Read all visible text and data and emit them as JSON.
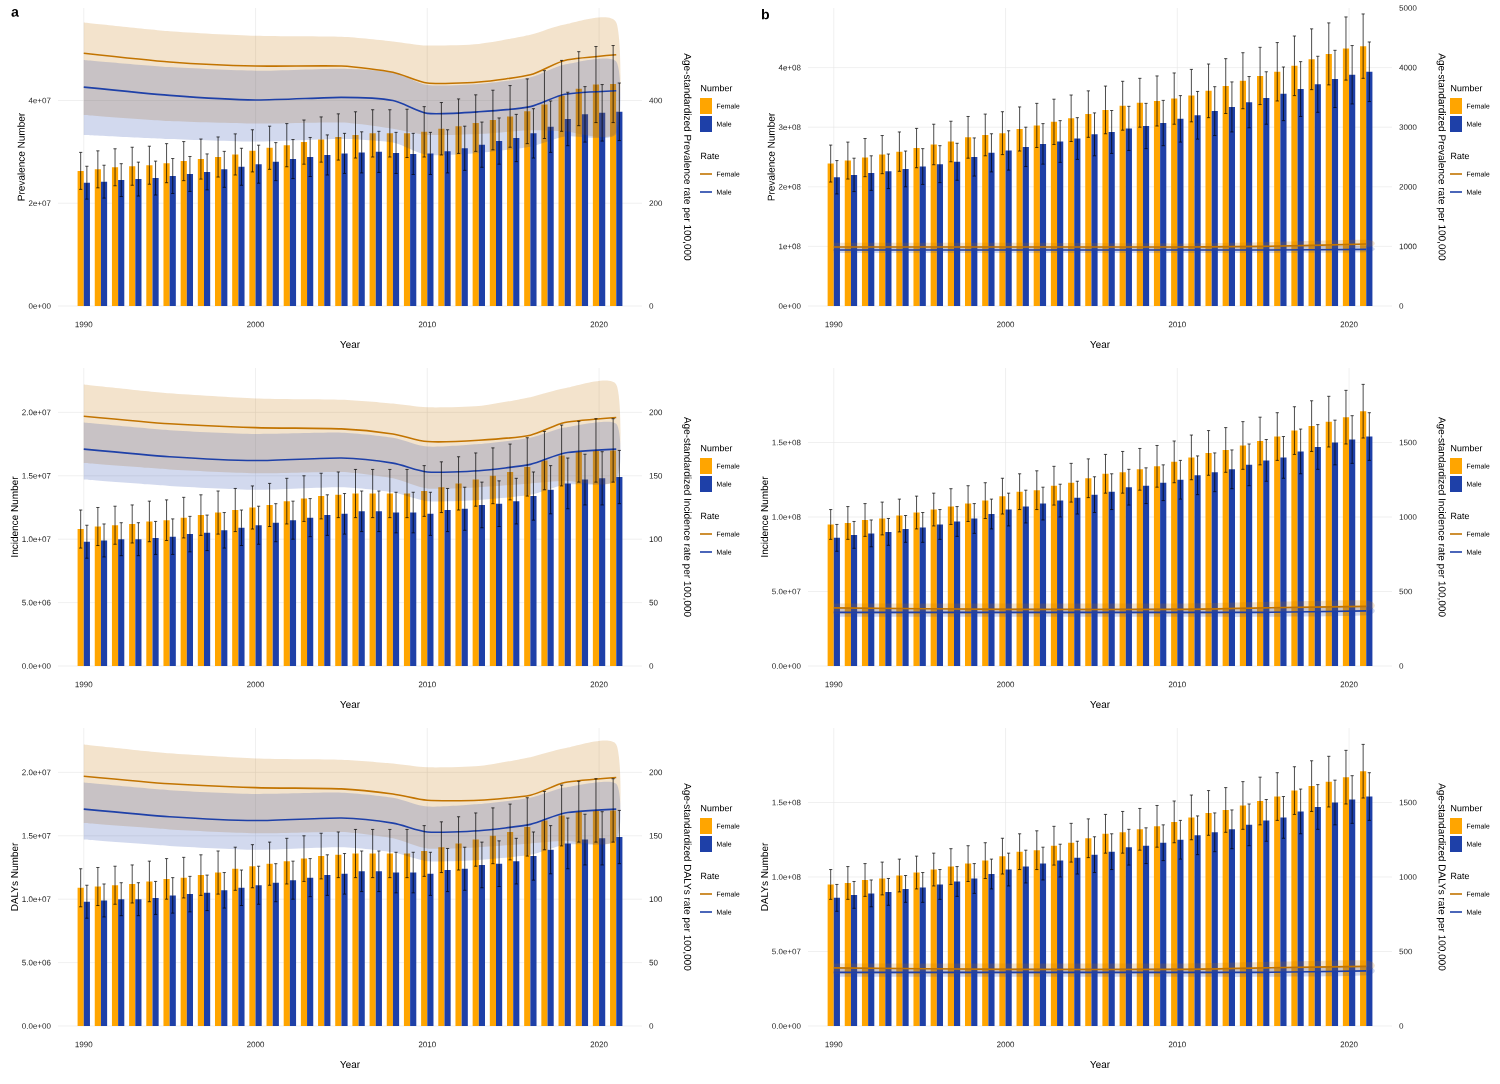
{
  "chart_data": [
    {
      "type": "bar",
      "title": "a",
      "xlabel": "Year",
      "ylabel": "Prevalence Number",
      "y2label": "Age-standardized Prevalence rate per 100,000",
      "legend_title": "Number",
      "annotations": [
        "Rate"
      ],
      "legend": "right",
      "grid": true,
      "x": [
        1990,
        1991,
        1992,
        1993,
        1994,
        1995,
        1996,
        1997,
        1998,
        1999,
        2000,
        2001,
        2002,
        2003,
        2004,
        2005,
        2006,
        2007,
        2008,
        2009,
        2010,
        2011,
        2012,
        2013,
        2014,
        2015,
        2016,
        2017,
        2018,
        2019,
        2020,
        2021
      ],
      "xlim": [
        1988.5,
        2022.5
      ],
      "xticks": [
        1990,
        2000,
        2010,
        2020
      ],
      "ylim": [
        0,
        58000000.0
      ],
      "yticks": [
        {
          "value": 0,
          "label": "0e+00"
        },
        {
          "value": 20000000.0,
          "label": "2e+07"
        },
        {
          "value": 40000000.0,
          "label": "4e+07"
        }
      ],
      "y2lim": [
        0,
        580
      ],
      "y2ticks": [
        0,
        200,
        400
      ],
      "series": [
        {
          "name": "Female",
          "color": "#FFA500",
          "values": [
            26300000.0,
            26600000.0,
            27000000.0,
            27200000.0,
            27400000.0,
            27800000.0,
            28200000.0,
            28600000.0,
            29000000.0,
            29500000.0,
            30200000.0,
            30800000.0,
            31300000.0,
            31900000.0,
            32400000.0,
            32900000.0,
            33300000.0,
            33600000.0,
            33600000.0,
            33600000.0,
            33900000.0,
            34500000.0,
            35000000.0,
            35600000.0,
            36200000.0,
            36900000.0,
            37900000.0,
            39200000.0,
            40900000.0,
            42300000.0,
            43100000.0,
            43200000.0
          ],
          "errors": [
            3600000.0,
            3600000.0,
            3600000.0,
            3700000.0,
            3700000.0,
            3800000.0,
            3800000.0,
            3900000.0,
            3900000.0,
            4000000.0,
            4100000.0,
            4200000.0,
            4200000.0,
            4300000.0,
            4400000.0,
            4500000.0,
            4500000.0,
            4600000.0,
            4600000.0,
            4700000.0,
            4900000.0,
            5100000.0,
            5300000.0,
            5500000.0,
            5800000.0,
            6000000.0,
            6300000.0,
            6600000.0,
            6900000.0,
            7200000.0,
            7400000.0,
            7500000.0
          ]
        },
        {
          "name": "Male",
          "color": "#1E40A8",
          "values": [
            24000000.0,
            24200000.0,
            24500000.0,
            24700000.0,
            24900000.0,
            25300000.0,
            25700000.0,
            26100000.0,
            26600000.0,
            27100000.0,
            27600000.0,
            28100000.0,
            28600000.0,
            29000000.0,
            29400000.0,
            29700000.0,
            29900000.0,
            30000000.0,
            29800000.0,
            29600000.0,
            29700000.0,
            30100000.0,
            30700000.0,
            31400000.0,
            32100000.0,
            32700000.0,
            33600000.0,
            34900000.0,
            36400000.0,
            37300000.0,
            37600000.0,
            37800000.0
          ],
          "errors": [
            3200000.0,
            3200000.0,
            3200000.0,
            3300000.0,
            3300000.0,
            3400000.0,
            3400000.0,
            3500000.0,
            3500000.0,
            3600000.0,
            3700000.0,
            3700000.0,
            3800000.0,
            3800000.0,
            3900000.0,
            3900000.0,
            4000000.0,
            4000000.0,
            4000000.0,
            4000000.0,
            4100000.0,
            4200000.0,
            4300000.0,
            4400000.0,
            4500000.0,
            4600000.0,
            4800000.0,
            5000000.0,
            5200000.0,
            5400000.0,
            5500000.0,
            5600000.0
          ]
        },
        {
          "type": "line",
          "axis": "y2",
          "name": "Female",
          "color": "#C27400",
          "x": [
            1990,
            1995,
            2000,
            2005,
            2008,
            2010,
            2013,
            2016,
            2018,
            2021
          ],
          "values": [
            492,
            475,
            467,
            467,
            455,
            434,
            436,
            450,
            478,
            489
          ],
          "lower": [
            372,
            360,
            355,
            357,
            345,
            333,
            335,
            342,
            340,
            339
          ],
          "upper": [
            552,
            535,
            526,
            524,
            515,
            507,
            510,
            528,
            548,
            552
          ]
        },
        {
          "type": "line",
          "axis": "y2",
          "name": "Male",
          "color": "#1E40A8",
          "x": [
            1990,
            1995,
            2000,
            2005,
            2008,
            2010,
            2013,
            2016,
            2018,
            2021
          ],
          "values": [
            426,
            410,
            401,
            406,
            400,
            375,
            378,
            388,
            412,
            419
          ],
          "lower": [
            333,
            325,
            320,
            325,
            318,
            294,
            298,
            310,
            330,
            335
          ],
          "upper": [
            479,
            465,
            458,
            462,
            455,
            430,
            432,
            445,
            470,
            476
          ]
        }
      ]
    },
    {
      "type": "bar",
      "title": "b",
      "xlabel": "Year",
      "ylabel": "Prevalence Number",
      "y2label": "Age-standardized Prevalence rate per 100,000",
      "legend_title": "Number",
      "annotations": [
        "Rate"
      ],
      "legend": "right",
      "grid": true,
      "x": [
        1990,
        1991,
        1992,
        1993,
        1994,
        1995,
        1996,
        1997,
        1998,
        1999,
        2000,
        2001,
        2002,
        2003,
        2004,
        2005,
        2006,
        2007,
        2008,
        2009,
        2010,
        2011,
        2012,
        2013,
        2014,
        2015,
        2016,
        2017,
        2018,
        2019,
        2020,
        2021
      ],
      "xlim": [
        1988.5,
        2022.5
      ],
      "xticks": [
        1990,
        2000,
        2010,
        2020
      ],
      "ylim": [
        0,
        500000000.0
      ],
      "yticks": [
        {
          "value": 0,
          "label": "0e+00"
        },
        {
          "value": 100000000.0,
          "label": "1e+08"
        },
        {
          "value": 200000000.0,
          "label": "2e+08"
        },
        {
          "value": 300000000.0,
          "label": "3e+08"
        },
        {
          "value": 400000000.0,
          "label": "4e+08"
        }
      ],
      "y2lim": [
        0,
        5000
      ],
      "y2ticks": [
        0,
        1000,
        2000,
        3000,
        4000,
        5000
      ],
      "series": [
        {
          "name": "Female",
          "color": "#FFA500",
          "values": [
            239000000.0,
            244000000.0,
            249000000.0,
            254000000.0,
            259000000.0,
            265000000.0,
            271000000.0,
            276000000.0,
            283000000.0,
            287000000.0,
            290000000.0,
            297000000.0,
            303000000.0,
            309000000.0,
            315000000.0,
            322000000.0,
            329000000.0,
            336000000.0,
            341000000.0,
            344000000.0,
            348000000.0,
            353000000.0,
            361000000.0,
            369000000.0,
            378000000.0,
            386000000.0,
            393000000.0,
            403000000.0,
            414000000.0,
            423000000.0,
            432000000.0,
            436000000.0
          ],
          "errors": [
            31000000.0,
            31000000.0,
            32000000.0,
            32000000.0,
            33000000.0,
            33000000.0,
            34000000.0,
            34000000.0,
            35000000.0,
            35000000.0,
            36000000.0,
            37000000.0,
            37000000.0,
            38000000.0,
            39000000.0,
            39000000.0,
            40000000.0,
            41000000.0,
            41000000.0,
            42000000.0,
            43000000.0,
            44000000.0,
            45000000.0,
            46000000.0,
            47000000.0,
            48000000.0,
            49000000.0,
            50000000.0,
            51000000.0,
            52000000.0,
            53000000.0,
            54000000.0
          ]
        },
        {
          "name": "Male",
          "color": "#1E40A8",
          "values": [
            216000000.0,
            220000000.0,
            223000000.0,
            226000000.0,
            230000000.0,
            234000000.0,
            238000000.0,
            242000000.0,
            250000000.0,
            257000000.0,
            261000000.0,
            267000000.0,
            272000000.0,
            276000000.0,
            281000000.0,
            288000000.0,
            292000000.0,
            298000000.0,
            302000000.0,
            307000000.0,
            314000000.0,
            320000000.0,
            327000000.0,
            334000000.0,
            342000000.0,
            349000000.0,
            356000000.0,
            364000000.0,
            372000000.0,
            381000000.0,
            388000000.0,
            393000000.0
          ],
          "errors": [
            28000000.0,
            28000000.0,
            29000000.0,
            29000000.0,
            30000000.0,
            30000000.0,
            31000000.0,
            31000000.0,
            32000000.0,
            32000000.0,
            33000000.0,
            33000000.0,
            34000000.0,
            35000000.0,
            35000000.0,
            36000000.0,
            36000000.0,
            37000000.0,
            38000000.0,
            38000000.0,
            39000000.0,
            40000000.0,
            41000000.0,
            42000000.0,
            43000000.0,
            44000000.0,
            45000000.0,
            46000000.0,
            47000000.0,
            48000000.0,
            49000000.0,
            50000000.0
          ]
        },
        {
          "type": "line",
          "axis": "y2",
          "name": "Female",
          "color": "#C27400",
          "x": [
            1990,
            2000,
            2010,
            2015,
            2021
          ],
          "values": [
            990,
            990,
            990,
            1000,
            1040
          ],
          "lower": [
            930,
            930,
            930,
            940,
            980
          ],
          "upper": [
            1060,
            1060,
            1050,
            1070,
            1110
          ]
        },
        {
          "type": "line",
          "axis": "y2",
          "name": "Male",
          "color": "#1E40A8",
          "x": [
            1990,
            2000,
            2010,
            2015,
            2021
          ],
          "values": [
            940,
            940,
            940,
            940,
            950
          ],
          "lower": [
            890,
            890,
            890,
            890,
            900
          ],
          "upper": [
            1000,
            1000,
            990,
            1000,
            1010
          ]
        }
      ]
    },
    {
      "type": "bar",
      "xlabel": "Year",
      "ylabel": "Incidence Number",
      "y2label": "Age-standardized Incidence rate per 100,000",
      "legend_title": "Number",
      "annotations": [
        "Rate"
      ],
      "legend": "right",
      "grid": true,
      "x": [
        1990,
        1991,
        1992,
        1993,
        1994,
        1995,
        1996,
        1997,
        1998,
        1999,
        2000,
        2001,
        2002,
        2003,
        2004,
        2005,
        2006,
        2007,
        2008,
        2009,
        2010,
        2011,
        2012,
        2013,
        2014,
        2015,
        2016,
        2017,
        2018,
        2019,
        2020,
        2021
      ],
      "xlim": [
        1988.5,
        2022.5
      ],
      "xticks": [
        1990,
        2000,
        2010,
        2020
      ],
      "ylim": [
        0,
        23500000.0
      ],
      "yticks": [
        {
          "value": 0,
          "label": "0.0e+00"
        },
        {
          "value": 5000000.0,
          "label": "5.0e+06"
        },
        {
          "value": 10000000.0,
          "label": "1.0e+07"
        },
        {
          "value": 15000000.0,
          "label": "1.5e+07"
        },
        {
          "value": 20000000.0,
          "label": "2.0e+07"
        }
      ],
      "y2lim": [
        0,
        235
      ],
      "y2ticks": [
        0,
        50,
        100,
        150,
        200
      ],
      "series": [
        {
          "name": "Female",
          "color": "#FFA500",
          "values": [
            10800000.0,
            11000000.0,
            11100000.0,
            11200000.0,
            11400000.0,
            11500000.0,
            11700000.0,
            11900000.0,
            12100000.0,
            12300000.0,
            12500000.0,
            12700000.0,
            13000000.0,
            13200000.0,
            13400000.0,
            13500000.0,
            13600000.0,
            13600000.0,
            13600000.0,
            13600000.0,
            13800000.0,
            14100000.0,
            14400000.0,
            14700000.0,
            15000000.0,
            15300000.0,
            15700000.0,
            16200000.0,
            16600000.0,
            16900000.0,
            17000000.0,
            17000000.0
          ],
          "errors": [
            1500000.0,
            1500000.0,
            1500000.0,
            1500000.0,
            1600000.0,
            1600000.0,
            1600000.0,
            1600000.0,
            1700000.0,
            1700000.0,
            1700000.0,
            1700000.0,
            1800000.0,
            1800000.0,
            1800000.0,
            1800000.0,
            1900000.0,
            1900000.0,
            1900000.0,
            1900000.0,
            2000000.0,
            2000000.0,
            2100000.0,
            2100000.0,
            2200000.0,
            2200000.0,
            2300000.0,
            2300000.0,
            2400000.0,
            2400000.0,
            2500000.0,
            2500000.0
          ]
        },
        {
          "name": "Male",
          "color": "#1E40A8",
          "values": [
            9800000.0,
            9900000.0,
            10000000.0,
            10000000.0,
            10100000.0,
            10200000.0,
            10400000.0,
            10500000.0,
            10700000.0,
            10900000.0,
            11100000.0,
            11300000.0,
            11500000.0,
            11700000.0,
            11900000.0,
            12000000.0,
            12200000.0,
            12200000.0,
            12100000.0,
            12100000.0,
            12000000.0,
            12300000.0,
            12400000.0,
            12700000.0,
            12800000.0,
            13000000.0,
            13400000.0,
            13900000.0,
            14400000.0,
            14700000.0,
            14800000.0,
            14900000.0
          ],
          "errors": [
            1300000.0,
            1300000.0,
            1300000.0,
            1300000.0,
            1300000.0,
            1400000.0,
            1400000.0,
            1400000.0,
            1400000.0,
            1400000.0,
            1500000.0,
            1500000.0,
            1500000.0,
            1500000.0,
            1600000.0,
            1600000.0,
            1600000.0,
            1600000.0,
            1600000.0,
            1600000.0,
            1700000.0,
            1700000.0,
            1700000.0,
            1800000.0,
            1800000.0,
            1800000.0,
            1900000.0,
            1900000.0,
            2000000.0,
            2000000.0,
            2100000.0,
            2100000.0
          ]
        },
        {
          "type": "line",
          "axis": "y2",
          "name": "Female",
          "color": "#C27400",
          "x": [
            1990,
            1995,
            2000,
            2005,
            2008,
            2010,
            2013,
            2016,
            2018,
            2021
          ],
          "values": [
            197,
            191,
            188,
            187,
            183,
            177,
            178,
            182,
            192,
            196
          ],
          "lower": [
            160,
            155,
            152,
            153,
            148,
            140,
            141,
            144,
            146,
            147
          ],
          "upper": [
            222,
            215,
            211,
            210,
            207,
            204,
            205,
            212,
            219,
            222
          ]
        },
        {
          "type": "line",
          "axis": "y2",
          "name": "Male",
          "color": "#1E40A8",
          "x": [
            1990,
            1995,
            2000,
            2005,
            2008,
            2010,
            2013,
            2016,
            2018,
            2021
          ],
          "values": [
            171,
            165,
            162,
            164,
            160,
            153,
            154,
            159,
            168,
            171
          ],
          "lower": [
            147,
            142,
            139,
            141,
            137,
            130,
            131,
            135,
            143,
            146
          ],
          "upper": [
            192,
            186,
            183,
            184,
            180,
            173,
            175,
            180,
            188,
            191
          ]
        }
      ]
    },
    {
      "type": "bar",
      "xlabel": "Year",
      "ylabel": "Incidence Number",
      "y2label": "Age-standardized Incidence rate per 100,000",
      "legend_title": "Number",
      "annotations": [
        "Rate"
      ],
      "legend": "right",
      "grid": true,
      "x": [
        1990,
        1991,
        1992,
        1993,
        1994,
        1995,
        1996,
        1997,
        1998,
        1999,
        2000,
        2001,
        2002,
        2003,
        2004,
        2005,
        2006,
        2007,
        2008,
        2009,
        2010,
        2011,
        2012,
        2013,
        2014,
        2015,
        2016,
        2017,
        2018,
        2019,
        2020,
        2021
      ],
      "xlim": [
        1988.5,
        2022.5
      ],
      "xticks": [
        1990,
        2000,
        2010,
        2020
      ],
      "ylim": [
        0,
        200000000.0
      ],
      "yticks": [
        {
          "value": 0,
          "label": "0.0e+00"
        },
        {
          "value": 50000000.0,
          "label": "5.0e+07"
        },
        {
          "value": 100000000.0,
          "label": "1.0e+08"
        },
        {
          "value": 150000000.0,
          "label": "1.5e+08"
        }
      ],
      "y2lim": [
        0,
        2000
      ],
      "y2ticks": [
        0,
        500,
        1000,
        1500
      ],
      "series": [
        {
          "name": "Female",
          "color": "#FFA500",
          "values": [
            95000000.0,
            96000000.0,
            98000000.0,
            99000000.0,
            101000000.0,
            103000000.0,
            105000000.0,
            107000000.0,
            109000000.0,
            111000000.0,
            114000000.0,
            117000000.0,
            118000000.0,
            121000000.0,
            123000000.0,
            126000000.0,
            129000000.0,
            130000000.0,
            132000000.0,
            134000000.0,
            137000000.0,
            140000000.0,
            143000000.0,
            145000000.0,
            148000000.0,
            151000000.0,
            154000000.0,
            158000000.0,
            161000000.0,
            164000000.0,
            167000000.0,
            171000000.0
          ],
          "errors": [
            10000000.0,
            11000000.0,
            11000000.0,
            11000000.0,
            11000000.0,
            11000000.0,
            11000000.0,
            12000000.0,
            12000000.0,
            12000000.0,
            12000000.0,
            12000000.0,
            13000000.0,
            13000000.0,
            13000000.0,
            13000000.0,
            13000000.0,
            14000000.0,
            14000000.0,
            14000000.0,
            14000000.0,
            15000000.0,
            15000000.0,
            15000000.0,
            16000000.0,
            16000000.0,
            16000000.0,
            16000000.0,
            17000000.0,
            17000000.0,
            18000000.0,
            18000000.0
          ]
        },
        {
          "name": "Male",
          "color": "#1E40A8",
          "values": [
            86000000.0,
            88000000.0,
            89000000.0,
            90000000.0,
            92000000.0,
            93000000.0,
            95000000.0,
            97000000.0,
            99000000.0,
            102000000.0,
            105000000.0,
            107000000.0,
            109000000.0,
            111000000.0,
            113000000.0,
            115000000.0,
            117000000.0,
            120000000.0,
            121000000.0,
            123000000.0,
            125000000.0,
            128000000.0,
            130000000.0,
            132000000.0,
            135000000.0,
            138000000.0,
            140000000.0,
            144000000.0,
            147000000.0,
            150000000.0,
            152000000.0,
            154000000.0
          ],
          "errors": [
            9000000.0,
            9000000.0,
            9000000.0,
            9000000.0,
            9000000.0,
            10000000.0,
            10000000.0,
            10000000.0,
            10000000.0,
            10000000.0,
            11000000.0,
            11000000.0,
            11000000.0,
            11000000.0,
            11000000.0,
            12000000.0,
            12000000.0,
            12000000.0,
            12000000.0,
            12000000.0,
            13000000.0,
            13000000.0,
            13000000.0,
            13000000.0,
            14000000.0,
            14000000.0,
            14000000.0,
            15000000.0,
            15000000.0,
            15000000.0,
            16000000.0,
            16000000.0
          ]
        },
        {
          "type": "line",
          "axis": "y2",
          "name": "Female",
          "color": "#C27400",
          "x": [
            1990,
            2000,
            2010,
            2015,
            2021
          ],
          "values": [
            390,
            380,
            380,
            390,
            400
          ],
          "lower": [
            350,
            350,
            350,
            360,
            370
          ],
          "upper": [
            420,
            420,
            420,
            430,
            440
          ]
        },
        {
          "type": "line",
          "axis": "y2",
          "name": "Male",
          "color": "#1E40A8",
          "x": [
            1990,
            2000,
            2010,
            2015,
            2021
          ],
          "values": [
            360,
            360,
            360,
            360,
            370
          ],
          "lower": [
            330,
            330,
            330,
            330,
            340
          ],
          "upper": [
            390,
            390,
            390,
            390,
            400
          ]
        }
      ]
    },
    {
      "type": "bar",
      "xlabel": "Year",
      "ylabel": "DALYs Number",
      "y2label": "Age-standardized DALYs rate per 100,000",
      "legend_title": "Number",
      "annotations": [
        "Rate"
      ],
      "legend": "right",
      "grid": true,
      "x": [
        1990,
        1991,
        1992,
        1993,
        1994,
        1995,
        1996,
        1997,
        1998,
        1999,
        2000,
        2001,
        2002,
        2003,
        2004,
        2005,
        2006,
        2007,
        2008,
        2009,
        2010,
        2011,
        2012,
        2013,
        2014,
        2015,
        2016,
        2017,
        2018,
        2019,
        2020,
        2021
      ],
      "xlim": [
        1988.5,
        2022.5
      ],
      "xticks": [
        1990,
        2000,
        2010,
        2020
      ],
      "ylim": [
        0,
        23500000.0
      ],
      "yticks": [
        {
          "value": 0,
          "label": "0.0e+00"
        },
        {
          "value": 5000000.0,
          "label": "5.0e+06"
        },
        {
          "value": 10000000.0,
          "label": "1.0e+07"
        },
        {
          "value": 15000000.0,
          "label": "1.5e+07"
        },
        {
          "value": 20000000.0,
          "label": "2.0e+07"
        }
      ],
      "y2lim": [
        0,
        235
      ],
      "y2ticks": [
        0,
        50,
        100,
        150,
        200
      ],
      "series": [
        {
          "name": "Female",
          "color": "#FFA500",
          "values": [
            10900000.0,
            11000000.0,
            11100000.0,
            11200000.0,
            11400000.0,
            11600000.0,
            11700000.0,
            11900000.0,
            12100000.0,
            12400000.0,
            12600000.0,
            12800000.0,
            13000000.0,
            13200000.0,
            13400000.0,
            13500000.0,
            13600000.0,
            13600000.0,
            13600000.0,
            13600000.0,
            13800000.0,
            14100000.0,
            14400000.0,
            14700000.0,
            15000000.0,
            15300000.0,
            15700000.0,
            16200000.0,
            16600000.0,
            16900000.0,
            17000000.0,
            17000000.0
          ],
          "errors": [
            1500000.0,
            1500000.0,
            1500000.0,
            1500000.0,
            1600000.0,
            1600000.0,
            1600000.0,
            1600000.0,
            1700000.0,
            1700000.0,
            1700000.0,
            1700000.0,
            1800000.0,
            1800000.0,
            1800000.0,
            1800000.0,
            1900000.0,
            1900000.0,
            1900000.0,
            1900000.0,
            2000000.0,
            2000000.0,
            2100000.0,
            2100000.0,
            2200000.0,
            2200000.0,
            2300000.0,
            2300000.0,
            2400000.0,
            2400000.0,
            2500000.0,
            2500000.0
          ]
        },
        {
          "name": "Male",
          "color": "#1E40A8",
          "values": [
            9800000.0,
            9900000.0,
            10000000.0,
            10000000.0,
            10100000.0,
            10300000.0,
            10400000.0,
            10500000.0,
            10700000.0,
            10900000.0,
            11100000.0,
            11300000.0,
            11500000.0,
            11700000.0,
            11900000.0,
            12000000.0,
            12200000.0,
            12200000.0,
            12100000.0,
            12100000.0,
            12000000.0,
            12300000.0,
            12400000.0,
            12700000.0,
            12800000.0,
            13000000.0,
            13400000.0,
            13900000.0,
            14400000.0,
            14700000.0,
            14800000.0,
            14900000.0
          ],
          "errors": [
            1300000.0,
            1300000.0,
            1300000.0,
            1300000.0,
            1300000.0,
            1400000.0,
            1400000.0,
            1400000.0,
            1400000.0,
            1400000.0,
            1500000.0,
            1500000.0,
            1500000.0,
            1500000.0,
            1600000.0,
            1600000.0,
            1600000.0,
            1600000.0,
            1600000.0,
            1600000.0,
            1700000.0,
            1700000.0,
            1700000.0,
            1800000.0,
            1800000.0,
            1800000.0,
            1900000.0,
            1900000.0,
            2000000.0,
            2000000.0,
            2100000.0,
            2100000.0
          ]
        },
        {
          "type": "line",
          "axis": "y2",
          "name": "Female",
          "color": "#C27400",
          "x": [
            1990,
            1995,
            2000,
            2005,
            2008,
            2010,
            2013,
            2016,
            2018,
            2021
          ],
          "values": [
            197,
            191,
            188,
            187,
            183,
            178,
            178,
            182,
            192,
            196
          ],
          "lower": [
            160,
            155,
            152,
            153,
            148,
            140,
            141,
            144,
            146,
            147
          ],
          "upper": [
            222,
            215,
            211,
            210,
            207,
            204,
            205,
            212,
            219,
            222
          ]
        },
        {
          "type": "line",
          "axis": "y2",
          "name": "Male",
          "color": "#1E40A8",
          "x": [
            1990,
            1995,
            2000,
            2005,
            2008,
            2010,
            2013,
            2016,
            2018,
            2021
          ],
          "values": [
            171,
            165,
            162,
            164,
            160,
            153,
            154,
            159,
            168,
            171
          ],
          "lower": [
            147,
            142,
            139,
            141,
            137,
            130,
            131,
            135,
            143,
            146
          ],
          "upper": [
            192,
            186,
            183,
            184,
            180,
            173,
            175,
            180,
            188,
            191
          ]
        }
      ]
    },
    {
      "type": "bar",
      "xlabel": "Year",
      "ylabel": "DALYs Number",
      "y2label": "Age-standardized DALYs rate per 100,000",
      "legend_title": "Number",
      "annotations": [
        "Rate"
      ],
      "legend": "right",
      "grid": true,
      "x": [
        1990,
        1991,
        1992,
        1993,
        1994,
        1995,
        1996,
        1997,
        1998,
        1999,
        2000,
        2001,
        2002,
        2003,
        2004,
        2005,
        2006,
        2007,
        2008,
        2009,
        2010,
        2011,
        2012,
        2013,
        2014,
        2015,
        2016,
        2017,
        2018,
        2019,
        2020,
        2021
      ],
      "xlim": [
        1988.5,
        2022.5
      ],
      "xticks": [
        1990,
        2000,
        2010,
        2020
      ],
      "ylim": [
        0,
        200000000.0
      ],
      "yticks": [
        {
          "value": 0,
          "label": "0.0e+00"
        },
        {
          "value": 50000000.0,
          "label": "5.0e+07"
        },
        {
          "value": 100000000.0,
          "label": "1.0e+08"
        },
        {
          "value": 150000000.0,
          "label": "1.5e+08"
        }
      ],
      "y2lim": [
        0,
        2000
      ],
      "y2ticks": [
        0,
        500,
        1000,
        1500
      ],
      "series": [
        {
          "name": "Female",
          "color": "#FFA500",
          "values": [
            95000000.0,
            96000000.0,
            98000000.0,
            99000000.0,
            101000000.0,
            103000000.0,
            105000000.0,
            107000000.0,
            109000000.0,
            111000000.0,
            114000000.0,
            117000000.0,
            118000000.0,
            121000000.0,
            123000000.0,
            126000000.0,
            129000000.0,
            130000000.0,
            132000000.0,
            134000000.0,
            137000000.0,
            140000000.0,
            143000000.0,
            145000000.0,
            148000000.0,
            151000000.0,
            154000000.0,
            158000000.0,
            161000000.0,
            164000000.0,
            167000000.0,
            171000000.0
          ],
          "errors": [
            10000000.0,
            11000000.0,
            11000000.0,
            11000000.0,
            11000000.0,
            11000000.0,
            11000000.0,
            12000000.0,
            12000000.0,
            12000000.0,
            12000000.0,
            12000000.0,
            13000000.0,
            13000000.0,
            13000000.0,
            13000000.0,
            13000000.0,
            14000000.0,
            14000000.0,
            14000000.0,
            14000000.0,
            15000000.0,
            15000000.0,
            15000000.0,
            16000000.0,
            16000000.0,
            16000000.0,
            16000000.0,
            17000000.0,
            17000000.0,
            18000000.0,
            18000000.0
          ]
        },
        {
          "name": "Male",
          "color": "#1E40A8",
          "values": [
            86000000.0,
            88000000.0,
            89000000.0,
            90000000.0,
            92000000.0,
            93000000.0,
            95000000.0,
            97000000.0,
            99000000.0,
            102000000.0,
            105000000.0,
            107000000.0,
            109000000.0,
            111000000.0,
            113000000.0,
            115000000.0,
            117000000.0,
            120000000.0,
            121000000.0,
            123000000.0,
            125000000.0,
            128000000.0,
            130000000.0,
            132000000.0,
            135000000.0,
            138000000.0,
            140000000.0,
            144000000.0,
            147000000.0,
            150000000.0,
            152000000.0,
            154000000.0
          ],
          "errors": [
            9000000.0,
            9000000.0,
            9000000.0,
            9000000.0,
            9000000.0,
            10000000.0,
            10000000.0,
            10000000.0,
            10000000.0,
            10000000.0,
            11000000.0,
            11000000.0,
            11000000.0,
            11000000.0,
            11000000.0,
            12000000.0,
            12000000.0,
            12000000.0,
            12000000.0,
            12000000.0,
            13000000.0,
            13000000.0,
            13000000.0,
            13000000.0,
            14000000.0,
            14000000.0,
            14000000.0,
            15000000.0,
            15000000.0,
            15000000.0,
            16000000.0,
            16000000.0
          ]
        },
        {
          "type": "line",
          "axis": "y2",
          "name": "Female",
          "color": "#C27400",
          "x": [
            1990,
            2000,
            2010,
            2015,
            2021
          ],
          "values": [
            390,
            380,
            380,
            390,
            400
          ],
          "lower": [
            350,
            350,
            350,
            360,
            370
          ],
          "upper": [
            420,
            420,
            420,
            430,
            440
          ]
        },
        {
          "type": "line",
          "axis": "y2",
          "name": "Male",
          "color": "#1E40A8",
          "x": [
            1990,
            2000,
            2010,
            2015,
            2021
          ],
          "values": [
            360,
            360,
            360,
            360,
            370
          ],
          "lower": [
            330,
            330,
            330,
            330,
            340
          ],
          "upper": [
            390,
            390,
            390,
            390,
            400
          ]
        }
      ]
    }
  ]
}
